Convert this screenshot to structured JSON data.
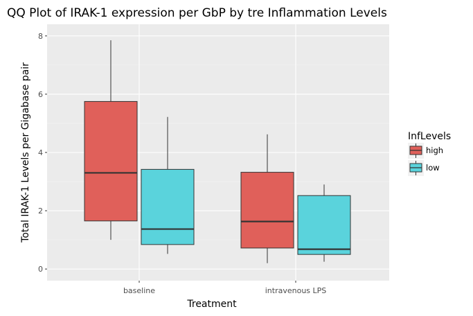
{
  "chart_data": {
    "type": "boxplot",
    "title": "QQ Plot of IRAK-1 expression per GbP by tre Inflammation Levels",
    "xlabel": "Treatment",
    "ylabel": "Total IRAK-1 Levels per Gigabase pair",
    "categories": [
      "baseline",
      "intravenous LPS"
    ],
    "ylim": [
      -0.4,
      8.4
    ],
    "yticks": [
      0,
      2,
      4,
      6,
      8
    ],
    "grid": true,
    "legend": {
      "title": "InfLevels",
      "placement": "right"
    },
    "series": [
      {
        "name": "high",
        "color": "#e0605a",
        "boxes": [
          {
            "category": "baseline",
            "min": 1.0,
            "q1": 1.65,
            "median": 3.3,
            "q3": 5.75,
            "max": 7.85
          },
          {
            "category": "intravenous LPS",
            "min": 0.2,
            "q1": 0.72,
            "median": 1.63,
            "q3": 3.32,
            "max": 4.62
          }
        ]
      },
      {
        "name": "low",
        "color": "#5ad3dc",
        "boxes": [
          {
            "category": "baseline",
            "min": 0.52,
            "q1": 0.84,
            "median": 1.37,
            "q3": 3.42,
            "max": 5.22
          },
          {
            "category": "intravenous LPS",
            "min": 0.25,
            "q1": 0.5,
            "median": 0.68,
            "q3": 2.52,
            "max": 2.9
          }
        ]
      }
    ]
  }
}
